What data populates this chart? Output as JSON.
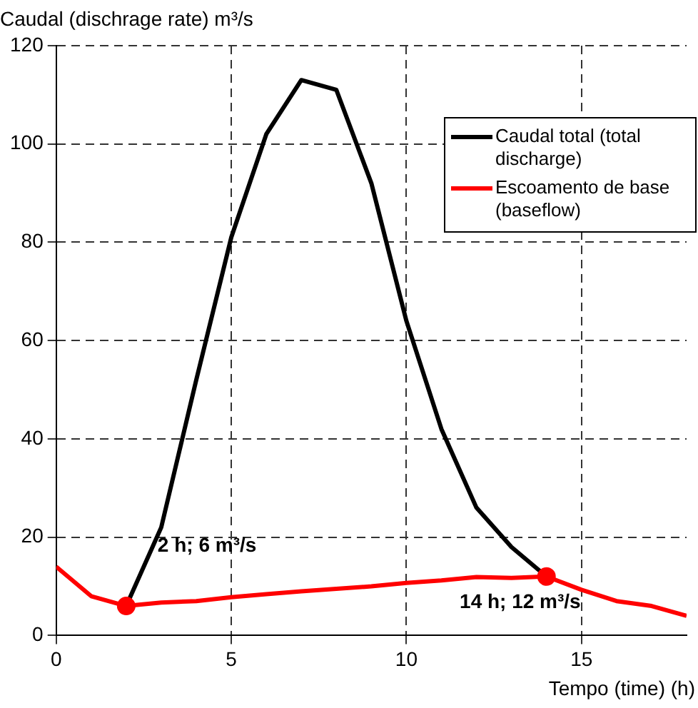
{
  "chart_data": {
    "type": "line",
    "ylabel": "Caudal (dischrage rate) m³/s",
    "xlabel": "Tempo (time) (h)",
    "x": [
      0,
      1,
      2,
      3,
      4,
      5,
      6,
      7,
      8,
      9,
      10,
      11,
      12,
      13,
      14,
      15,
      16,
      17,
      18
    ],
    "series": [
      {
        "name": "Caudal total (total discharge)",
        "color": "#000000",
        "x": [
          2,
          3,
          4,
          5,
          6,
          7,
          8,
          9,
          10,
          11,
          12,
          13,
          14
        ],
        "values": [
          6,
          22,
          52,
          81,
          102,
          113,
          111,
          92,
          64,
          42,
          26,
          18,
          12
        ]
      },
      {
        "name": "Escoamento de base (baseflow)",
        "color": "#ff0000",
        "values": [
          14,
          8,
          6,
          6.7,
          7,
          7.8,
          8.4,
          9,
          9.5,
          10,
          10.7,
          11.2,
          11.9,
          11.7,
          12,
          9.3,
          7,
          6,
          4
        ]
      },
      {
        "type": "scatter",
        "color": "#ff0000",
        "marker": "circle",
        "x": [
          2,
          14
        ],
        "values": [
          6,
          12
        ]
      }
    ],
    "annotations": [
      {
        "text": "2 h; 6 m³/s",
        "x": 2,
        "y": 6
      },
      {
        "text": "14 h; 12 m³/s",
        "x": 14,
        "y": 12
      }
    ],
    "xlim": [
      0,
      18
    ],
    "xticks": [
      0,
      5,
      10,
      15
    ],
    "ylim": [
      0,
      120
    ],
    "yticks": [
      0,
      20,
      40,
      60,
      80,
      100,
      120
    ],
    "grid": true,
    "legend": "top right",
    "marker": "none",
    "line_style": "solid"
  }
}
